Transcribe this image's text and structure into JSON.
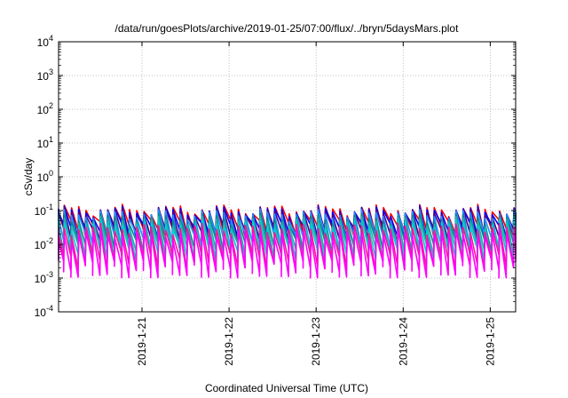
{
  "chart_data": {
    "type": "line",
    "title": "/data/run/goesPlots/archive/2019-01-25/07:00/flux/../bryn/5daysMars.plot",
    "xlabel": "Coordinated Universal Time (UTC)",
    "ylabel": "cSv/day",
    "yscale": "log",
    "ylim": [
      0.0001,
      10000
    ],
    "xlim": [
      "2019-01-20T01:00",
      "2019-01-25T07:00"
    ],
    "ytick_labels": [
      {
        "base": "10",
        "exp": "-4",
        "value": 0.0001
      },
      {
        "base": "10",
        "exp": "-3",
        "value": 0.001
      },
      {
        "base": "10",
        "exp": "-2",
        "value": 0.01
      },
      {
        "base": "10",
        "exp": "-1",
        "value": 0.1
      },
      {
        "base": "10",
        "exp": "0",
        "value": 1
      },
      {
        "base": "10",
        "exp": "1",
        "value": 10
      },
      {
        "base": "10",
        "exp": "2",
        "value": 100
      },
      {
        "base": "10",
        "exp": "3",
        "value": 1000
      },
      {
        "base": "10",
        "exp": "4",
        "value": 10000
      }
    ],
    "xtick_labels": [
      {
        "label": "2019-1-21",
        "value": "2019-01-21T00:00"
      },
      {
        "label": "2019-1-22",
        "value": "2019-01-22T00:00"
      },
      {
        "label": "2019-1-23",
        "value": "2019-01-23T00:00"
      },
      {
        "label": "2019-1-24",
        "value": "2019-01-24T00:00"
      },
      {
        "label": "2019-1-25",
        "value": "2019-01-25T00:00"
      }
    ],
    "grid": true,
    "legend": "none",
    "cycle_period_hours": 2.0,
    "series": [
      {
        "color": "#ff0000",
        "peak": 0.11,
        "trough": 0.03
      },
      {
        "color": "#0000ff",
        "peak": 0.1,
        "trough": 0.025
      },
      {
        "color": "#4b0082",
        "peak": 0.09,
        "trough": 0.02
      },
      {
        "color": "#1e90ff",
        "peak": 0.08,
        "trough": 0.012
      },
      {
        "color": "#008b8b",
        "peak": 0.06,
        "trough": 0.008
      },
      {
        "color": "#20b2aa",
        "peak": 0.05,
        "trough": 0.006
      },
      {
        "color": "#00ced1",
        "peak": 0.04,
        "trough": 0.005
      },
      {
        "color": "#ff1493",
        "peak": 0.03,
        "trough": 0.003
      },
      {
        "color": "#ff00ff",
        "peak": 0.02,
        "trough": 0.0018
      }
    ]
  }
}
